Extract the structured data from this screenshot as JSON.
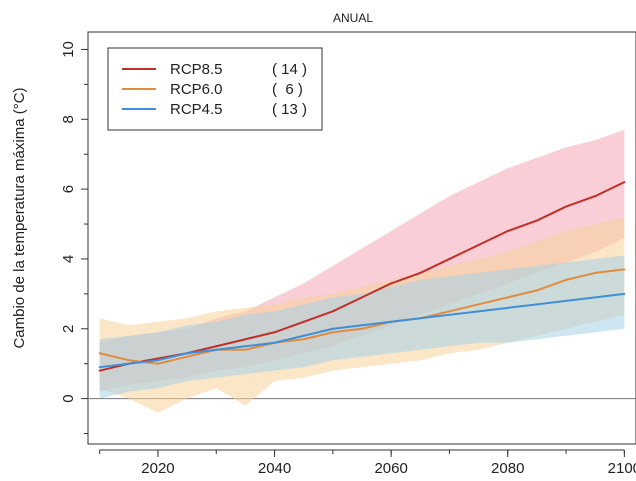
{
  "chart_data": {
    "type": "line",
    "title": "ANUAL",
    "ylabel": "Cambio de la temperatura máxima (°C)",
    "xlabel": "",
    "xlim": [
      2008,
      2102
    ],
    "ylim": [
      -1.3,
      10.5
    ],
    "x_ticks": [
      2020,
      2040,
      2060,
      2080,
      2100
    ],
    "y_ticks": [
      0,
      2,
      4,
      6,
      8,
      10
    ],
    "reference_line_y": 0,
    "legend_position": "top-left",
    "series": [
      {
        "name": "RCP8.5",
        "count": "( 14 )",
        "color": "#c0302a",
        "band_color": "#f4a6b4",
        "x": [
          2010,
          2015,
          2020,
          2025,
          2030,
          2035,
          2040,
          2045,
          2050,
          2055,
          2060,
          2065,
          2070,
          2075,
          2080,
          2085,
          2090,
          2095,
          2100
        ],
        "y": [
          0.8,
          1.0,
          1.15,
          1.3,
          1.5,
          1.7,
          1.9,
          2.2,
          2.5,
          2.9,
          3.3,
          3.6,
          4.0,
          4.4,
          4.8,
          5.1,
          5.5,
          5.8,
          6.2
        ],
        "lower": [
          0.2,
          0.4,
          0.5,
          0.6,
          0.8,
          0.9,
          1.1,
          1.3,
          1.5,
          1.8,
          2.1,
          2.4,
          2.7,
          3.0,
          3.3,
          3.6,
          3.9,
          4.2,
          4.6
        ],
        "upper": [
          1.6,
          1.8,
          1.9,
          2.0,
          2.3,
          2.5,
          2.9,
          3.3,
          3.8,
          4.3,
          4.8,
          5.3,
          5.8,
          6.2,
          6.6,
          6.9,
          7.2,
          7.4,
          7.7
        ]
      },
      {
        "name": "RCP6.0",
        "count": "(  6 )",
        "color": "#e08c3e",
        "band_color": "#f7d19a",
        "x": [
          2010,
          2015,
          2020,
          2025,
          2030,
          2035,
          2040,
          2045,
          2050,
          2055,
          2060,
          2065,
          2070,
          2075,
          2080,
          2085,
          2090,
          2095,
          2100
        ],
        "y": [
          1.3,
          1.1,
          1.0,
          1.2,
          1.4,
          1.4,
          1.6,
          1.7,
          1.9,
          2.0,
          2.2,
          2.3,
          2.5,
          2.7,
          2.9,
          3.1,
          3.4,
          3.6,
          3.7
        ],
        "lower": [
          0.3,
          0.0,
          -0.4,
          0.0,
          0.3,
          -0.2,
          0.5,
          0.6,
          0.8,
          0.9,
          1.0,
          1.1,
          1.3,
          1.4,
          1.6,
          1.8,
          2.0,
          2.2,
          2.4
        ],
        "upper": [
          2.3,
          2.1,
          2.2,
          2.3,
          2.5,
          2.6,
          2.7,
          2.9,
          3.0,
          3.2,
          3.4,
          3.6,
          3.8,
          4.0,
          4.2,
          4.5,
          4.8,
          5.0,
          5.2
        ]
      },
      {
        "name": "RCP4.5",
        "count": "( 13 )",
        "color": "#3f8fd8",
        "band_color": "#a6d2e8",
        "x": [
          2010,
          2015,
          2020,
          2025,
          2030,
          2035,
          2040,
          2045,
          2050,
          2055,
          2060,
          2065,
          2070,
          2075,
          2080,
          2085,
          2090,
          2095,
          2100
        ],
        "y": [
          0.9,
          1.0,
          1.1,
          1.3,
          1.4,
          1.5,
          1.6,
          1.8,
          2.0,
          2.1,
          2.2,
          2.3,
          2.4,
          2.5,
          2.6,
          2.7,
          2.8,
          2.9,
          3.0
        ],
        "lower": [
          0.0,
          0.2,
          0.3,
          0.5,
          0.6,
          0.7,
          0.8,
          0.9,
          1.1,
          1.2,
          1.3,
          1.4,
          1.5,
          1.6,
          1.6,
          1.7,
          1.8,
          1.9,
          2.0
        ],
        "upper": [
          1.7,
          1.8,
          1.9,
          2.1,
          2.2,
          2.4,
          2.5,
          2.7,
          2.9,
          3.0,
          3.2,
          3.4,
          3.5,
          3.6,
          3.7,
          3.8,
          3.9,
          4.0,
          4.1
        ]
      }
    ]
  }
}
